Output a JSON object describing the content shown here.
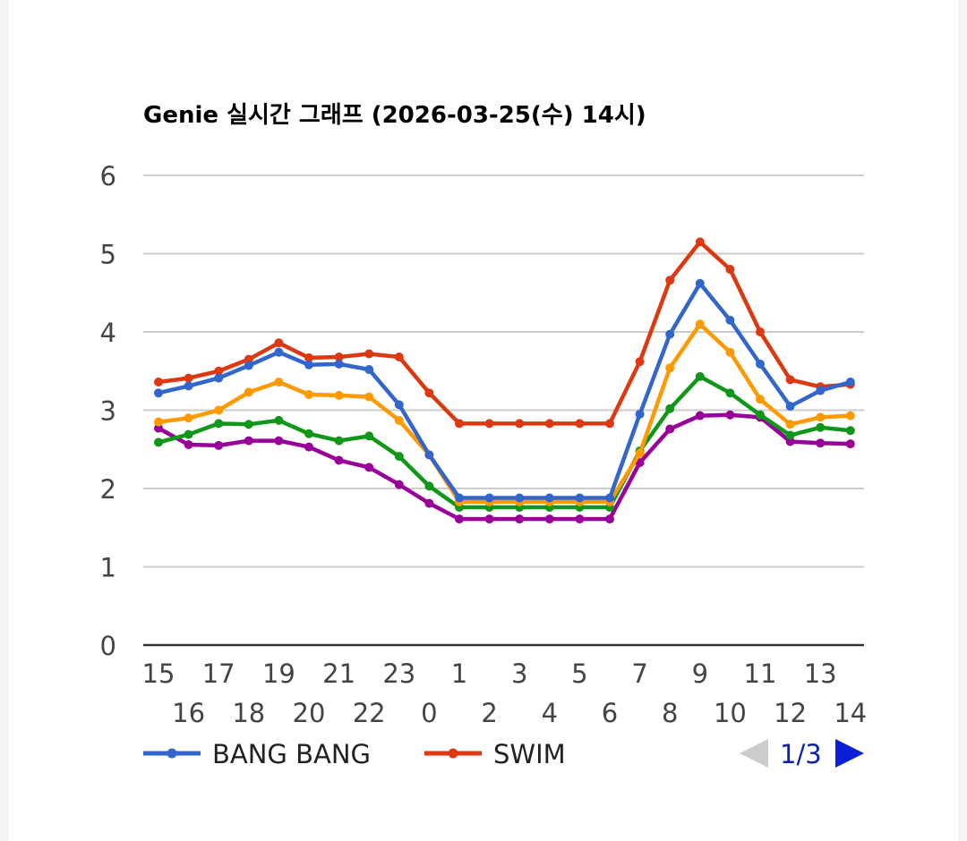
{
  "chart_data": {
    "type": "line",
    "title": "Genie 실시간 그래프 (2026-03-25(수) 14시)",
    "xlabel": "",
    "ylabel": "",
    "ylim": [
      0,
      6
    ],
    "yticks": [
      "0",
      "1",
      "2",
      "3",
      "4",
      "5",
      "6"
    ],
    "grid": true,
    "legend": "bottom-left",
    "categories": [
      "15",
      "16",
      "17",
      "18",
      "19",
      "20",
      "21",
      "22",
      "23",
      "0",
      "1",
      "2",
      "3",
      "4",
      "5",
      "6",
      "7",
      "8",
      "9",
      "10",
      "11",
      "12",
      "13",
      "14"
    ],
    "series": [
      {
        "name": "BANG BANG",
        "color": "#3366cc",
        "values": [
          3.22,
          3.31,
          3.41,
          3.57,
          3.74,
          3.58,
          3.59,
          3.52,
          3.07,
          2.43,
          1.88,
          1.88,
          1.88,
          1.88,
          1.88,
          1.88,
          2.95,
          3.97,
          4.62,
          4.15,
          3.59,
          3.05,
          3.25,
          3.36
        ]
      },
      {
        "name": "SWIM",
        "color": "#dc3912",
        "values": [
          3.36,
          3.41,
          3.5,
          3.65,
          3.86,
          3.67,
          3.68,
          3.72,
          3.68,
          3.22,
          2.83,
          2.83,
          2.83,
          2.83,
          2.83,
          2.83,
          3.62,
          4.66,
          5.15,
          4.8,
          4.0,
          3.39,
          3.3,
          3.33
        ]
      },
      {
        "name": "",
        "color": "#ff9900",
        "values": [
          2.85,
          2.9,
          3.0,
          3.23,
          3.36,
          3.2,
          3.19,
          3.17,
          2.87,
          2.43,
          1.83,
          1.83,
          1.83,
          1.83,
          1.83,
          1.83,
          2.45,
          3.54,
          4.1,
          3.74,
          3.14,
          2.82,
          2.91,
          2.93
        ]
      },
      {
        "name": "",
        "color": "#109618",
        "values": [
          2.59,
          2.69,
          2.83,
          2.82,
          2.87,
          2.7,
          2.61,
          2.67,
          2.41,
          2.03,
          1.76,
          1.76,
          1.76,
          1.76,
          1.76,
          1.76,
          2.48,
          3.02,
          3.43,
          3.22,
          2.94,
          2.68,
          2.78,
          2.74
        ]
      },
      {
        "name": "",
        "color": "#990099",
        "values": [
          2.77,
          2.56,
          2.55,
          2.61,
          2.61,
          2.53,
          2.36,
          2.27,
          2.05,
          1.81,
          1.61,
          1.61,
          1.61,
          1.61,
          1.61,
          1.61,
          2.33,
          2.76,
          2.93,
          2.94,
          2.91,
          2.6,
          2.58,
          2.57
        ]
      }
    ]
  },
  "legend_items": [
    {
      "label": "BANG BANG",
      "color": "#3366cc"
    },
    {
      "label": "SWIM",
      "color": "#dc3912"
    }
  ],
  "pager": {
    "text": "1/3",
    "prev_color": "#cccccc",
    "next_color": "#0b1fd8"
  }
}
